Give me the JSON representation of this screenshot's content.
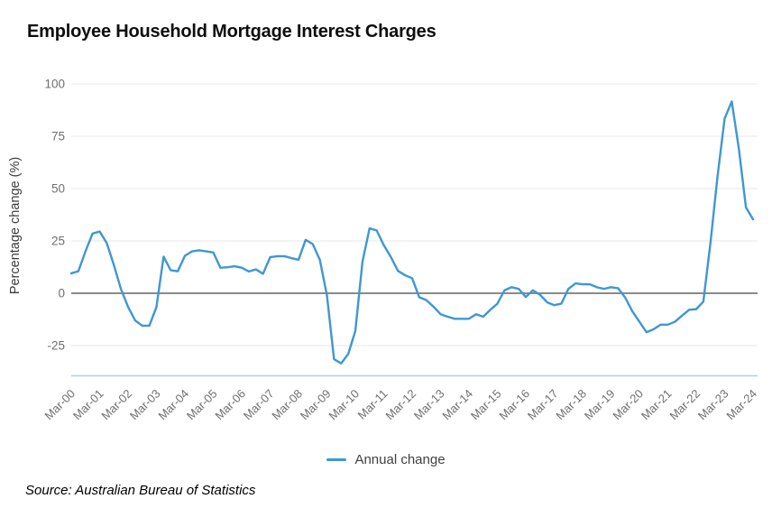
{
  "title": "Employee Household Mortgage Interest Charges",
  "source_note": "Source: Australian Bureau of Statistics",
  "legend": {
    "items": [
      {
        "label": "Annual change",
        "color": "#3f97d2"
      }
    ]
  },
  "colors": {
    "line": "#3f97d2",
    "grid": "#e7e7e7",
    "zero_line": "#8a8a8a",
    "axis_bottom_line": "#a9cfe9",
    "tick_text": "#6f6f6f",
    "axis_title_text": "#3a3a3a"
  },
  "chart_data": {
    "type": "line",
    "title": "Employee Household Mortgage Interest Charges",
    "xlabel": "",
    "ylabel": "Percentage change (%)",
    "ylim": [
      -40,
      100
    ],
    "yticks": [
      100,
      75,
      50,
      25,
      0,
      -25
    ],
    "grid": "horizontal-only",
    "zero_baseline": true,
    "legend_position": "bottom-center",
    "x_tick_labels": [
      "Mar-00",
      "Mar-01",
      "Mar-02",
      "Mar-03",
      "Mar-04",
      "Mar-05",
      "Mar-06",
      "Mar-07",
      "Mar-08",
      "Mar-09",
      "Mar-10",
      "Mar-11",
      "Mar-12",
      "Mar-13",
      "Mar-14",
      "Mar-15",
      "Mar-16",
      "Mar-17",
      "Mar-18",
      "Mar-19",
      "Mar-20",
      "Mar-21",
      "Mar-22",
      "Mar-23",
      "Mar-24"
    ],
    "series": [
      {
        "name": "Annual change",
        "color": "#3f97d2",
        "frequency": "quarterly",
        "x_start": "Mar-00",
        "x_end": "Mar-24",
        "values": [
          9.5,
          10.5,
          20.0,
          28.5,
          29.5,
          24.0,
          13.5,
          2.0,
          -6.5,
          -13.0,
          -15.5,
          -15.5,
          -6.5,
          17.5,
          11.0,
          10.5,
          17.9,
          20.0,
          20.5,
          20.0,
          19.5,
          12.2,
          12.4,
          12.9,
          12.2,
          10.4,
          11.4,
          9.3,
          17.2,
          17.7,
          17.7,
          16.8,
          16.0,
          25.5,
          23.5,
          16.0,
          -1.0,
          -31.5,
          -33.5,
          -29.0,
          -18.0,
          15.0,
          31.0,
          30.0,
          23.0,
          17.3,
          10.7,
          8.6,
          7.2,
          -1.9,
          -3.3,
          -6.4,
          -10.0,
          -11.2,
          -12.2,
          -12.2,
          -12.2,
          -10.0,
          -11.2,
          -7.9,
          -5.0,
          1.4,
          2.9,
          2.1,
          -1.8,
          1.4,
          -0.7,
          -4.3,
          -5.7,
          -5.0,
          2.1,
          4.7,
          4.3,
          4.3,
          2.9,
          2.1,
          2.9,
          2.4,
          -2.1,
          -8.6,
          -13.6,
          -18.6,
          -17.2,
          -15.0,
          -15.0,
          -13.6,
          -10.7,
          -7.9,
          -7.6,
          -4.0,
          24.0,
          56.0,
          83.5,
          91.6,
          69.0,
          41.0,
          35.3
        ]
      }
    ]
  }
}
